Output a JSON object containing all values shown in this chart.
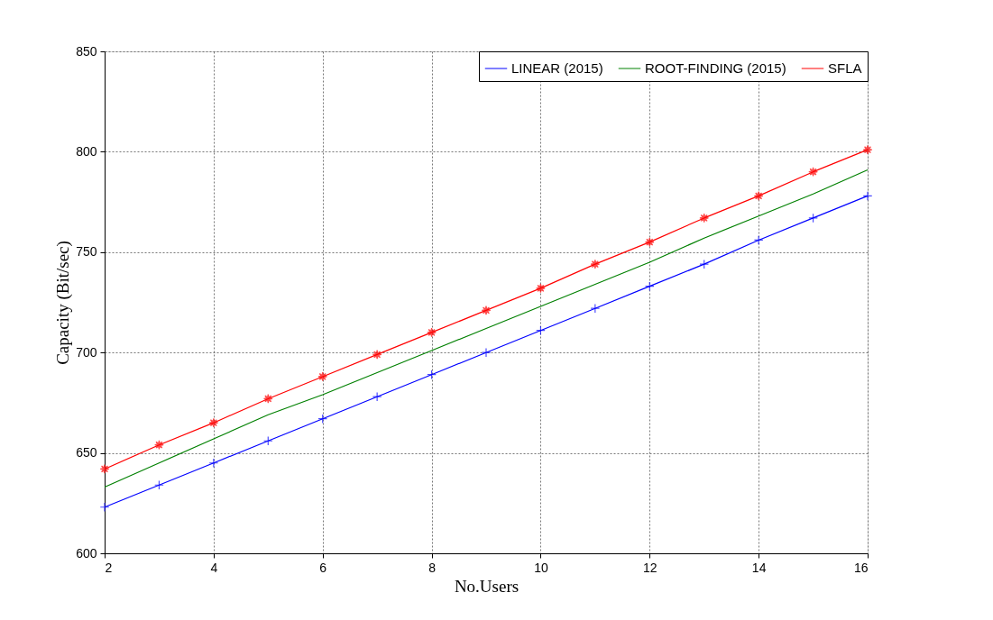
{
  "chart_data": {
    "type": "line",
    "xlabel": "No.Users",
    "ylabel": "Capacity (Bit/sec)",
    "x": [
      2,
      3,
      4,
      5,
      6,
      7,
      8,
      9,
      10,
      11,
      12,
      13,
      14,
      15,
      16
    ],
    "series": [
      {
        "name": "LINEAR (2015)",
        "color": "#0000ff",
        "marker": "cross",
        "values": [
          623,
          634,
          645,
          656,
          667,
          678,
          689,
          700,
          711,
          722,
          733,
          744,
          756,
          767,
          778
        ]
      },
      {
        "name": "ROOT-FINDING (2015)",
        "color": "#008000",
        "marker": "none",
        "values": [
          633,
          645,
          657,
          669,
          679,
          690,
          701,
          712,
          723,
          734,
          745,
          757,
          768,
          779,
          791
        ]
      },
      {
        "name": "SFLA",
        "color": "#ff0000",
        "marker": "star",
        "values": [
          642,
          654,
          665,
          677,
          688,
          699,
          710,
          721,
          732,
          744,
          755,
          767,
          778,
          790,
          801
        ]
      }
    ],
    "xlim": [
      2,
      16
    ],
    "xticks": [
      2,
      4,
      6,
      8,
      10,
      12,
      14,
      16
    ],
    "ylim": [
      600,
      850
    ],
    "yticks": [
      600,
      650,
      700,
      750,
      800,
      850
    ],
    "grid": true,
    "legend": "top right",
    "line_style": "solid"
  }
}
